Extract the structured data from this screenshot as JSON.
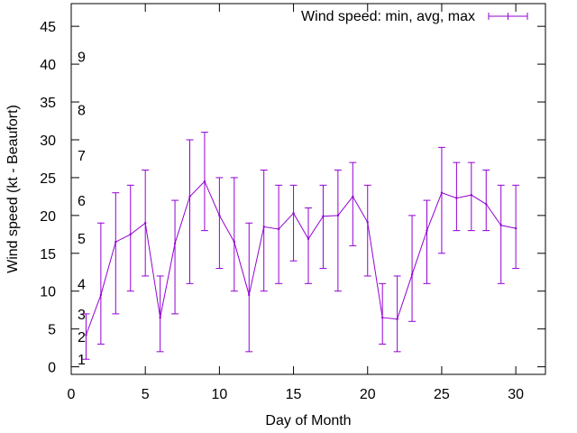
{
  "chart_data": {
    "type": "line",
    "legend_position": "top-right",
    "grid": false,
    "xlabel": "Day of Month",
    "ylabel": "Wind speed (kt - Beaufort)",
    "xlim": [
      0,
      32
    ],
    "ylim": [
      -1,
      48
    ],
    "x_ticks": [
      0,
      5,
      10,
      15,
      20,
      25,
      30
    ],
    "y_ticks": [
      0,
      5,
      10,
      15,
      20,
      25,
      30,
      35,
      40,
      45
    ],
    "beaufort_labels": [
      {
        "label": "1",
        "y": 1
      },
      {
        "label": "2",
        "y": 4
      },
      {
        "label": "3",
        "y": 7
      },
      {
        "label": "4",
        "y": 11
      },
      {
        "label": "5",
        "y": 17
      },
      {
        "label": "6",
        "y": 22
      },
      {
        "label": "7",
        "y": 28
      },
      {
        "label": "8",
        "y": 34
      },
      {
        "label": "9",
        "y": 41
      }
    ],
    "series": [
      {
        "name": "Wind speed: min, avg, max",
        "color": "#9400d3",
        "x": [
          1,
          2,
          3,
          4,
          5,
          6,
          7,
          8,
          9,
          10,
          11,
          12,
          13,
          14,
          15,
          16,
          17,
          18,
          19,
          20,
          21,
          22,
          23,
          24,
          25,
          26,
          27,
          28,
          29,
          30
        ],
        "avg": [
          4.2,
          9.5,
          16.5,
          17.5,
          19,
          6.5,
          16.3,
          22.5,
          24.5,
          20,
          16.5,
          9.5,
          18.5,
          18.2,
          20.3,
          16.9,
          19.9,
          20,
          22.5,
          19.1,
          6.5,
          6.3,
          12.2,
          18,
          23,
          22.3,
          22.7,
          21.5,
          18.7,
          18.3
        ],
        "min": [
          1,
          3,
          7,
          10,
          12,
          2,
          7,
          11,
          18,
          13,
          10,
          2,
          10,
          11,
          14,
          11,
          13,
          10,
          16,
          12,
          3,
          2,
          6,
          11,
          15,
          18,
          18,
          18,
          11,
          13
        ],
        "max": [
          7,
          19,
          23,
          24,
          26,
          12,
          22,
          30,
          31,
          25,
          25,
          19,
          26,
          24,
          24,
          21,
          24,
          26,
          27,
          24,
          11,
          12,
          20,
          22,
          29,
          27,
          27,
          26,
          24,
          24
        ]
      }
    ]
  }
}
